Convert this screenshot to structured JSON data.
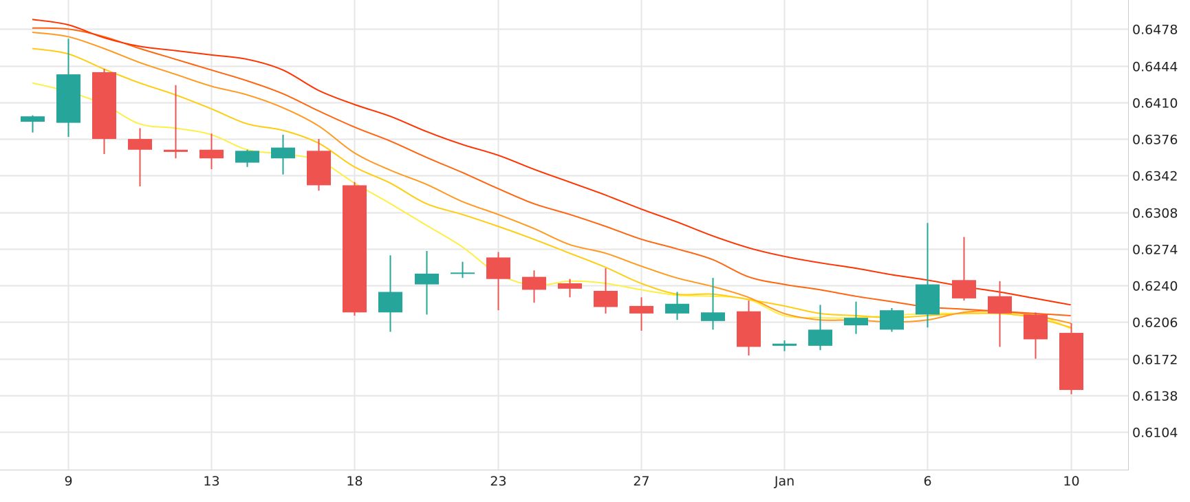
{
  "chart_data": {
    "type": "candlestick",
    "x_ticks": [
      {
        "index": 1,
        "label": "9"
      },
      {
        "index": 5,
        "label": "13"
      },
      {
        "index": 9,
        "label": "18"
      },
      {
        "index": 13,
        "label": "23"
      },
      {
        "index": 17,
        "label": "27"
      },
      {
        "index": 21,
        "label": "Jan"
      },
      {
        "index": 25,
        "label": "6"
      },
      {
        "index": 29,
        "label": "10"
      }
    ],
    "y_ticks": [
      0.6478,
      0.6444,
      0.641,
      0.6376,
      0.6342,
      0.6308,
      0.6274,
      0.624,
      0.6206,
      0.6172,
      0.6138,
      0.6104
    ],
    "y_tick_labels": [
      "0.6478",
      "0.6444",
      "0.6410",
      "0.6376",
      "0.6342",
      "0.6308",
      "0.6274",
      "0.6240",
      "0.6206",
      "0.6172",
      "0.6138",
      "0.6104"
    ],
    "ylim": [
      0.6069,
      0.6505
    ],
    "xlim": [
      -0.9,
      30.6
    ],
    "grid": true,
    "y_axis_position": "right",
    "candles": [
      {
        "open": 0.6392,
        "high": 0.6398,
        "low": 0.6382,
        "close": 0.6397
      },
      {
        "open": 0.6391,
        "high": 0.6469,
        "low": 0.6378,
        "close": 0.6436
      },
      {
        "open": 0.6438,
        "high": 0.6441,
        "low": 0.6362,
        "close": 0.6376
      },
      {
        "open": 0.6376,
        "high": 0.6386,
        "low": 0.6332,
        "close": 0.6366
      },
      {
        "open": 0.6366,
        "high": 0.6426,
        "low": 0.6358,
        "close": 0.6364
      },
      {
        "open": 0.6366,
        "high": 0.6381,
        "low": 0.6348,
        "close": 0.6358
      },
      {
        "open": 0.6354,
        "high": 0.6366,
        "low": 0.635,
        "close": 0.6365
      },
      {
        "open": 0.6358,
        "high": 0.638,
        "low": 0.6343,
        "close": 0.6368
      },
      {
        "open": 0.6365,
        "high": 0.6376,
        "low": 0.6328,
        "close": 0.6333
      },
      {
        "open": 0.6333,
        "high": 0.6336,
        "low": 0.6212,
        "close": 0.6215
      },
      {
        "open": 0.6215,
        "high": 0.6268,
        "low": 0.6197,
        "close": 0.6234
      },
      {
        "open": 0.6241,
        "high": 0.6272,
        "low": 0.6213,
        "close": 0.6251
      },
      {
        "open": 0.6251,
        "high": 0.6262,
        "low": 0.6247,
        "close": 0.6252
      },
      {
        "open": 0.6266,
        "high": 0.6271,
        "low": 0.6217,
        "close": 0.6246
      },
      {
        "open": 0.6248,
        "high": 0.6254,
        "low": 0.6224,
        "close": 0.6236
      },
      {
        "open": 0.6242,
        "high": 0.6246,
        "low": 0.6229,
        "close": 0.6237
      },
      {
        "open": 0.6235,
        "high": 0.6256,
        "low": 0.6214,
        "close": 0.622
      },
      {
        "open": 0.6221,
        "high": 0.6229,
        "low": 0.6198,
        "close": 0.6214
      },
      {
        "open": 0.6214,
        "high": 0.6234,
        "low": 0.6208,
        "close": 0.6223
      },
      {
        "open": 0.6207,
        "high": 0.6247,
        "low": 0.6199,
        "close": 0.6215
      },
      {
        "open": 0.6216,
        "high": 0.6226,
        "low": 0.6175,
        "close": 0.6183
      },
      {
        "open": 0.6184,
        "high": 0.6189,
        "low": 0.6179,
        "close": 0.6186
      },
      {
        "open": 0.6184,
        "high": 0.6222,
        "low": 0.618,
        "close": 0.6199
      },
      {
        "open": 0.6203,
        "high": 0.6225,
        "low": 0.6195,
        "close": 0.621
      },
      {
        "open": 0.6199,
        "high": 0.6219,
        "low": 0.6197,
        "close": 0.6217
      },
      {
        "open": 0.6213,
        "high": 0.6298,
        "low": 0.6201,
        "close": 0.6241
      },
      {
        "open": 0.6245,
        "high": 0.6285,
        "low": 0.6226,
        "close": 0.6228
      },
      {
        "open": 0.623,
        "high": 0.6244,
        "low": 0.6183,
        "close": 0.6214
      },
      {
        "open": 0.6213,
        "high": 0.6215,
        "low": 0.6172,
        "close": 0.619
      },
      {
        "open": 0.6196,
        "high": 0.6205,
        "low": 0.6139,
        "close": 0.6143
      }
    ],
    "moving_averages": [
      {
        "color": "#ffee44",
        "values": [
          0.6428,
          0.642,
          0.6408,
          0.639,
          0.6386,
          0.638,
          0.6366,
          0.6362,
          0.6356,
          0.6335,
          0.6316,
          0.6296,
          0.6276,
          0.6251,
          0.624,
          0.6244,
          0.6242,
          0.6236,
          0.6231,
          0.623,
          0.6227,
          0.6212,
          0.621,
          0.621,
          0.6212,
          0.6214,
          0.6214,
          0.6214,
          0.6213,
          0.62
        ]
      },
      {
        "color": "#ffcc11",
        "values": [
          0.646,
          0.6455,
          0.6441,
          0.6428,
          0.6417,
          0.6404,
          0.639,
          0.6384,
          0.6372,
          0.635,
          0.6335,
          0.6316,
          0.6306,
          0.6295,
          0.6283,
          0.627,
          0.6257,
          0.6242,
          0.6232,
          0.6232,
          0.6227,
          0.6221,
          0.6214,
          0.6212,
          0.621,
          0.6212,
          0.6214,
          0.6214,
          0.621,
          0.6201
        ]
      },
      {
        "color": "#ff9922",
        "values": [
          0.6475,
          0.6471,
          0.646,
          0.6447,
          0.6436,
          0.6425,
          0.6417,
          0.6405,
          0.6388,
          0.6363,
          0.6347,
          0.6334,
          0.6318,
          0.6306,
          0.6293,
          0.6278,
          0.627,
          0.6258,
          0.6247,
          0.6239,
          0.6229,
          0.6214,
          0.6208,
          0.6208,
          0.6206,
          0.6208,
          0.6215,
          0.6216,
          0.6212,
          0.6205
        ]
      },
      {
        "color": "#ff6611",
        "values": [
          0.6479,
          0.6478,
          0.6471,
          0.646,
          0.645,
          0.644,
          0.643,
          0.6418,
          0.6402,
          0.6387,
          0.6374,
          0.6359,
          0.6345,
          0.633,
          0.6316,
          0.6306,
          0.6295,
          0.6283,
          0.6274,
          0.6264,
          0.6248,
          0.6241,
          0.6236,
          0.623,
          0.6225,
          0.622,
          0.6218,
          0.6216,
          0.6214,
          0.6212
        ]
      },
      {
        "color": "#ff3300",
        "values": [
          0.6487,
          0.6482,
          0.647,
          0.6462,
          0.6458,
          0.6454,
          0.645,
          0.644,
          0.6421,
          0.6408,
          0.6397,
          0.6383,
          0.6371,
          0.6361,
          0.6348,
          0.6336,
          0.6324,
          0.6311,
          0.6299,
          0.6286,
          0.6275,
          0.6267,
          0.6261,
          0.6256,
          0.625,
          0.6245,
          0.6239,
          0.6234,
          0.6228,
          0.6222
        ]
      }
    ],
    "colors": {
      "up": "#26a69a",
      "down": "#ef5350",
      "grid": "#e6e6e6",
      "axis": "#cccccc"
    }
  }
}
